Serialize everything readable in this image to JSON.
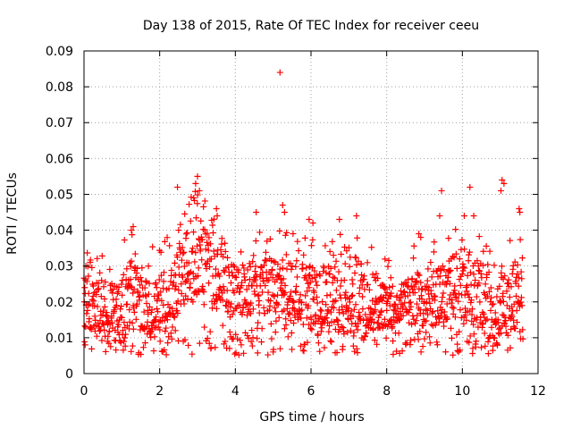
{
  "chart_data": {
    "type": "scatter",
    "title": "Day 138 of 2015, Rate Of TEC Index for receiver ceeu",
    "xlabel": "GPS time / hours",
    "ylabel": "ROTI / TECUs",
    "xlim": [
      0,
      12
    ],
    "ylim": [
      0,
      0.09
    ],
    "xticks": [
      0,
      2,
      4,
      6,
      8,
      10,
      12
    ],
    "xtick_labels": [
      "0",
      "2",
      "4",
      "6",
      "8",
      "10",
      "12"
    ],
    "yticks": [
      0,
      0.01,
      0.02,
      0.03,
      0.04,
      0.05,
      0.06,
      0.07,
      0.08,
      0.09
    ],
    "ytick_labels": [
      "0",
      "0.01",
      "0.02",
      "0.03",
      "0.04",
      "0.05",
      "0.06",
      "0.07",
      "0.08",
      "0.09"
    ],
    "grid": true,
    "marker": "+",
    "color": "#ff0000",
    "series": [
      {
        "name": "ROTI",
        "x_range": [
          0.0,
          11.6
        ],
        "typical_range": [
          0.005,
          0.03
        ],
        "envelope": [
          [
            0.0,
            0.012,
            0.028
          ],
          [
            0.5,
            0.011,
            0.026
          ],
          [
            1.0,
            0.011,
            0.028
          ],
          [
            1.25,
            0.013,
            0.034
          ],
          [
            1.5,
            0.01,
            0.027
          ],
          [
            2.0,
            0.012,
            0.028
          ],
          [
            2.5,
            0.014,
            0.034
          ],
          [
            2.8,
            0.022,
            0.042
          ],
          [
            3.0,
            0.022,
            0.044
          ],
          [
            3.5,
            0.018,
            0.036
          ],
          [
            4.0,
            0.016,
            0.03
          ],
          [
            4.5,
            0.016,
            0.032
          ],
          [
            5.0,
            0.017,
            0.032
          ],
          [
            5.5,
            0.016,
            0.032
          ],
          [
            6.0,
            0.012,
            0.03
          ],
          [
            6.5,
            0.011,
            0.03
          ],
          [
            7.0,
            0.012,
            0.036
          ],
          [
            7.5,
            0.012,
            0.03
          ],
          [
            8.0,
            0.012,
            0.024
          ],
          [
            8.5,
            0.014,
            0.026
          ],
          [
            9.0,
            0.013,
            0.03
          ],
          [
            9.5,
            0.014,
            0.03
          ],
          [
            10.0,
            0.015,
            0.036
          ],
          [
            10.5,
            0.012,
            0.032
          ],
          [
            11.0,
            0.011,
            0.03
          ],
          [
            11.6,
            0.012,
            0.032
          ]
        ],
        "outliers": [
          {
            "x": 5.18,
            "y": 0.084
          },
          {
            "x": 2.47,
            "y": 0.052
          },
          {
            "x": 3.0,
            "y": 0.055
          },
          {
            "x": 2.95,
            "y": 0.053
          },
          {
            "x": 3.05,
            "y": 0.051
          },
          {
            "x": 2.9,
            "y": 0.049
          },
          {
            "x": 9.45,
            "y": 0.051
          },
          {
            "x": 10.2,
            "y": 0.052
          },
          {
            "x": 11.05,
            "y": 0.054
          },
          {
            "x": 11.1,
            "y": 0.053
          },
          {
            "x": 11.02,
            "y": 0.051
          },
          {
            "x": 11.5,
            "y": 0.046
          },
          {
            "x": 11.52,
            "y": 0.045
          },
          {
            "x": 5.25,
            "y": 0.047
          },
          {
            "x": 5.3,
            "y": 0.045
          },
          {
            "x": 4.55,
            "y": 0.045
          },
          {
            "x": 3.5,
            "y": 0.046
          },
          {
            "x": 3.52,
            "y": 0.044
          },
          {
            "x": 7.2,
            "y": 0.044
          },
          {
            "x": 9.4,
            "y": 0.044
          },
          {
            "x": 10.05,
            "y": 0.044
          },
          {
            "x": 10.3,
            "y": 0.044
          },
          {
            "x": 1.3,
            "y": 0.041
          },
          {
            "x": 1.25,
            "y": 0.04
          },
          {
            "x": 5.95,
            "y": 0.043
          },
          {
            "x": 6.05,
            "y": 0.042
          },
          {
            "x": 6.75,
            "y": 0.043
          },
          {
            "x": 8.85,
            "y": 0.039
          },
          {
            "x": 8.9,
            "y": 0.038
          },
          {
            "x": 2.5,
            "y": 0.04
          },
          {
            "x": 0.05,
            "y": 0.03
          },
          {
            "x": 0.02,
            "y": 0.024
          },
          {
            "x": 0.03,
            "y": 0.008
          }
        ]
      }
    ]
  }
}
